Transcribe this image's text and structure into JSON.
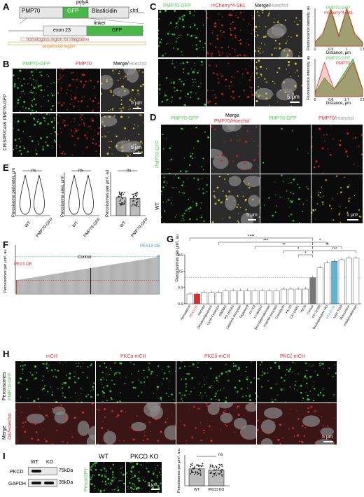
{
  "panels": {
    "A": "A",
    "B": "B",
    "C": "C",
    "D": "D",
    "E": "E",
    "F": "F",
    "G": "G",
    "H": "H",
    "I": "I"
  },
  "a": {
    "pmp70": "PMP70",
    "gfp": "GFP",
    "polya": "polyA",
    "blasticidin": "Blasticidin",
    "chrI": "chrI",
    "linker": "linker",
    "exon23": "exon 23",
    "gfp2": "GFP",
    "homologous": "homologous region for integration",
    "sequenced": "sequenced region"
  },
  "b": {
    "col1": "PMP70-GFP",
    "col2": "PMP70",
    "col3a": "Merge/",
    "col3b": "Hoechst",
    "side1": "CRISPR/Cas9 PMP70-GFP",
    "sb1": "5 μm",
    "sb2": "5 μm"
  },
  "c": {
    "col1": "PMP70-GFP",
    "col2": "mCherry*4-SKL",
    "col3a": "Merge/",
    "col3b": "Hoechst",
    "sb": "5 μm",
    "g1": "PMP70-GFP",
    "r1": "mCherry*4-SKL",
    "g2": "PMP70-GFP",
    "r2": "PMP70",
    "ylab": "Fluorescence intensity, au",
    "xlab": "Distance, μm"
  },
  "d": {
    "c1": "PMP70-GFP",
    "c2a": "Merge",
    "c2b": "PMP70/Hoechst",
    "c3": "PMP70-GFP",
    "c4a": "PMP70/",
    "c4b": "Hoechst",
    "row1": "PMP70-GFP",
    "row2": "WT",
    "sb1": "5 μm",
    "sb2": "1 μm"
  },
  "e": {
    "y1": "Peroxisome perimeter, μm",
    "y2": "Peroxisome area, μm²",
    "y3": "Peroxisomes per μm², au",
    "ns": "ns",
    "wt": "WT",
    "gfp": "PMP70-GFP"
  },
  "f": {
    "ylab": "Peroxisomes per μm², au",
    "pex3": "PEX3 OE",
    "control": "Control",
    "pex19": "PEX19 OE"
  },
  "g": {
    "ylab": "Peroxisomes per μm², au",
    "stars": [
      "****",
      "***",
      "**",
      "*",
      "*",
      "**",
      "***"
    ],
    "labels": [
      "Nemadipine",
      "PEX3 OE",
      "Atenolol",
      "Dihydroergotamine",
      "Cyclo-Ketamine",
      "GW9662",
      "PD 184161",
      "Lapatinib ditosylate",
      "Tegaserod",
      "VX-702",
      "LY-364947",
      "Bisindolylmaleimide",
      "Imatinib mesylate",
      "Crenolanib",
      "KN-93",
      "CAY10581",
      "PR75",
      "Control",
      "CP-31398",
      "Oxybuprocaine HCl",
      "PEX19 OE",
      "NSC-1218",
      "Roscovitine",
      "Indolylmaleimide"
    ]
  },
  "h": {
    "c1": "mCH",
    "c2": "PKCα-mCH",
    "c3": "PKCδ-mCH",
    "c4": "PKCζ-mCH",
    "row1a": "Peroxisomes",
    "row1b": "PMP70-GFP",
    "row2a": "Merge",
    "row2b": "OE/Hoechst",
    "sb": "5 μm"
  },
  "i": {
    "wt": "WT",
    "ko": "KO",
    "pkcd": "PKCD",
    "gapdh": "GAPDH",
    "kda75": "75kDa",
    "kda35": "35kDa",
    "m1": "WT",
    "m2": "PKCD KO",
    "side": "PeroxiSPY",
    "sb": "5 μm",
    "ylab": "Peroxisomes per μm², a.u.",
    "x1": "WT",
    "x2": "PKCD KO",
    "ns": "ns"
  },
  "chart_data": [
    {
      "type": "line",
      "title": "",
      "xlabel": "Distance, μm",
      "ylabel": "Fluorescence intensity, au",
      "series": [
        {
          "name": "PMP70-GFP",
          "x": [
            0,
            0.25,
            0.5,
            0.75,
            1.0,
            1.25,
            1.5
          ],
          "y": [
            0.1,
            0.3,
            1.0,
            0.3,
            1.0,
            0.3,
            0.1
          ]
        },
        {
          "name": "mCherry*4-SKL",
          "x": [
            0,
            0.25,
            0.5,
            0.75,
            1.0,
            1.25,
            1.5
          ],
          "y": [
            0.1,
            0.35,
            0.95,
            0.25,
            1.0,
            0.35,
            0.1
          ]
        }
      ],
      "xlim": [
        0,
        1.5
      ]
    },
    {
      "type": "line",
      "title": "",
      "xlabel": "Distance, μm",
      "ylabel": "Fluorescence intensity, au",
      "series": [
        {
          "name": "PMP70-GFP",
          "x": [
            0,
            0.5,
            1.0,
            1.5,
            2.0,
            2.5
          ],
          "y": [
            0.1,
            0.5,
            0.2,
            0.6,
            1.0,
            0.2
          ]
        },
        {
          "name": "PMP70",
          "x": [
            0,
            0.5,
            1.0,
            1.5,
            2.0,
            2.5
          ],
          "y": [
            0.1,
            0.9,
            0.2,
            0.5,
            0.9,
            0.2
          ]
        }
      ],
      "xlim": [
        0,
        2.5
      ]
    },
    {
      "type": "bar",
      "title": "",
      "ylabel": "Peroxisomes per μm², au",
      "categories": [
        "WT",
        "PMP70-GFP"
      ],
      "values": [
        0.42,
        0.4
      ],
      "ylim": [
        0,
        1.0
      ]
    },
    {
      "type": "bar",
      "title": "",
      "ylabel": "Peroxisomes per μm², au",
      "categories": [
        "Nemadipine",
        "PEX3 OE",
        "Atenolol",
        "Dihydroergotamine",
        "Cyclo-Ketamine",
        "GW9662",
        "PD 184161",
        "Lapatinib ditosylate",
        "Tegaserod",
        "VX-702",
        "LY-364947",
        "Bisindolylmaleimide",
        "Imatinib mesylate",
        "Crenolanib",
        "KN-93",
        "CAY10581",
        "PR75",
        "Control",
        "CP-31398",
        "Oxybuprocaine HCl",
        "PEX19 OE",
        "NSC-1218",
        "Roscovitine",
        "Indolylmaleimide"
      ],
      "values": [
        0.36,
        0.36,
        0.37,
        0.37,
        0.37,
        0.38,
        0.38,
        0.38,
        0.38,
        0.38,
        0.38,
        0.38,
        0.38,
        0.39,
        0.39,
        0.39,
        0.39,
        0.46,
        0.52,
        0.55,
        0.56,
        0.57,
        0.58,
        0.58
      ],
      "ylim": [
        0.3,
        0.6
      ]
    },
    {
      "type": "bar",
      "title": "",
      "ylabel": "Peroxisomes per μm², a.u.",
      "categories": [
        "WT",
        "PKCD KO"
      ],
      "values": [
        0.33,
        0.31
      ],
      "ylim": [
        0,
        0.6
      ]
    }
  ]
}
